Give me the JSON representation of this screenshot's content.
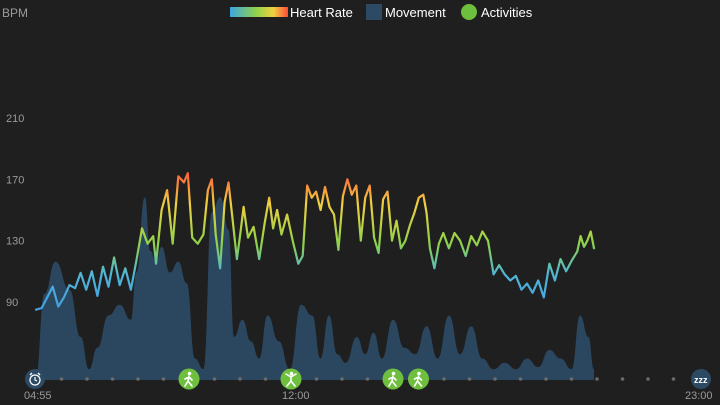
{
  "chart_data": {
    "type": "line",
    "y_axis": {
      "label": "BPM",
      "ticks": [
        90,
        130,
        170,
        210
      ],
      "range": [
        60,
        230
      ]
    },
    "x_axis": {
      "start_label": "04:55",
      "mid_label": "12:00",
      "end_label": "23:00"
    },
    "legend": {
      "position": "top-center",
      "items": [
        {
          "key": "heart_rate",
          "label": "Heart Rate"
        },
        {
          "key": "movement",
          "label": "Movement"
        },
        {
          "key": "activities",
          "label": "Activities"
        }
      ]
    },
    "colors": {
      "background": "#1f1f1f",
      "movement": "#2c4a63",
      "activity": "#6fbf3f",
      "axis_text": "#9a9a9a",
      "heart_rate_low": "#3d8fe0",
      "heart_rate_mid": "#8fd24a",
      "heart_rate_high": "#ff5a3a"
    },
    "heart_rate_series": [
      {
        "x": 0.0,
        "bpm": 85
      },
      {
        "x": 0.01,
        "bpm": 86
      },
      {
        "x": 0.02,
        "bpm": 93
      },
      {
        "x": 0.03,
        "bpm": 100
      },
      {
        "x": 0.04,
        "bpm": 87
      },
      {
        "x": 0.05,
        "bpm": 93
      },
      {
        "x": 0.06,
        "bpm": 101
      },
      {
        "x": 0.07,
        "bpm": 99
      },
      {
        "x": 0.08,
        "bpm": 109
      },
      {
        "x": 0.09,
        "bpm": 98
      },
      {
        "x": 0.1,
        "bpm": 110
      },
      {
        "x": 0.11,
        "bpm": 94
      },
      {
        "x": 0.12,
        "bpm": 113
      },
      {
        "x": 0.13,
        "bpm": 100
      },
      {
        "x": 0.14,
        "bpm": 119
      },
      {
        "x": 0.15,
        "bpm": 101
      },
      {
        "x": 0.16,
        "bpm": 112
      },
      {
        "x": 0.17,
        "bpm": 98
      },
      {
        "x": 0.18,
        "bpm": 117
      },
      {
        "x": 0.19,
        "bpm": 138
      },
      {
        "x": 0.2,
        "bpm": 128
      },
      {
        "x": 0.21,
        "bpm": 133
      },
      {
        "x": 0.215,
        "bpm": 115
      },
      {
        "x": 0.225,
        "bpm": 150
      },
      {
        "x": 0.235,
        "bpm": 163
      },
      {
        "x": 0.245,
        "bpm": 128
      },
      {
        "x": 0.255,
        "bpm": 172
      },
      {
        "x": 0.265,
        "bpm": 168
      },
      {
        "x": 0.272,
        "bpm": 174
      },
      {
        "x": 0.28,
        "bpm": 132
      },
      {
        "x": 0.29,
        "bpm": 128
      },
      {
        "x": 0.3,
        "bpm": 134
      },
      {
        "x": 0.308,
        "bpm": 163
      },
      {
        "x": 0.315,
        "bpm": 170
      },
      {
        "x": 0.322,
        "bpm": 134
      },
      {
        "x": 0.33,
        "bpm": 112
      },
      {
        "x": 0.338,
        "bpm": 155
      },
      {
        "x": 0.345,
        "bpm": 168
      },
      {
        "x": 0.352,
        "bpm": 145
      },
      {
        "x": 0.36,
        "bpm": 118
      },
      {
        "x": 0.366,
        "bpm": 134
      },
      {
        "x": 0.372,
        "bpm": 152
      },
      {
        "x": 0.38,
        "bpm": 132
      },
      {
        "x": 0.39,
        "bpm": 139
      },
      {
        "x": 0.4,
        "bpm": 118
      },
      {
        "x": 0.41,
        "bpm": 142
      },
      {
        "x": 0.418,
        "bpm": 158
      },
      {
        "x": 0.425,
        "bpm": 138
      },
      {
        "x": 0.432,
        "bpm": 150
      },
      {
        "x": 0.44,
        "bpm": 134
      },
      {
        "x": 0.45,
        "bpm": 147
      },
      {
        "x": 0.46,
        "bpm": 130
      },
      {
        "x": 0.47,
        "bpm": 115
      },
      {
        "x": 0.478,
        "bpm": 120
      },
      {
        "x": 0.486,
        "bpm": 166
      },
      {
        "x": 0.494,
        "bpm": 158
      },
      {
        "x": 0.502,
        "bpm": 162
      },
      {
        "x": 0.51,
        "bpm": 150
      },
      {
        "x": 0.518,
        "bpm": 165
      },
      {
        "x": 0.526,
        "bpm": 152
      },
      {
        "x": 0.534,
        "bpm": 147
      },
      {
        "x": 0.542,
        "bpm": 124
      },
      {
        "x": 0.55,
        "bpm": 159
      },
      {
        "x": 0.558,
        "bpm": 170
      },
      {
        "x": 0.566,
        "bpm": 160
      },
      {
        "x": 0.574,
        "bpm": 166
      },
      {
        "x": 0.582,
        "bpm": 130
      },
      {
        "x": 0.59,
        "bpm": 158
      },
      {
        "x": 0.598,
        "bpm": 166
      },
      {
        "x": 0.606,
        "bpm": 132
      },
      {
        "x": 0.614,
        "bpm": 122
      },
      {
        "x": 0.622,
        "bpm": 157
      },
      {
        "x": 0.63,
        "bpm": 162
      },
      {
        "x": 0.638,
        "bpm": 130
      },
      {
        "x": 0.646,
        "bpm": 143
      },
      {
        "x": 0.654,
        "bpm": 125
      },
      {
        "x": 0.662,
        "bpm": 130
      },
      {
        "x": 0.67,
        "bpm": 140
      },
      {
        "x": 0.678,
        "bpm": 148
      },
      {
        "x": 0.686,
        "bpm": 158
      },
      {
        "x": 0.694,
        "bpm": 160
      },
      {
        "x": 0.7,
        "bpm": 148
      },
      {
        "x": 0.706,
        "bpm": 125
      },
      {
        "x": 0.714,
        "bpm": 112
      },
      {
        "x": 0.722,
        "bpm": 128
      },
      {
        "x": 0.73,
        "bpm": 135
      },
      {
        "x": 0.74,
        "bpm": 125
      },
      {
        "x": 0.75,
        "bpm": 135
      },
      {
        "x": 0.76,
        "bpm": 130
      },
      {
        "x": 0.77,
        "bpm": 120
      },
      {
        "x": 0.78,
        "bpm": 133
      },
      {
        "x": 0.79,
        "bpm": 127
      },
      {
        "x": 0.8,
        "bpm": 136
      },
      {
        "x": 0.81,
        "bpm": 130
      },
      {
        "x": 0.82,
        "bpm": 108
      },
      {
        "x": 0.83,
        "bpm": 114
      },
      {
        "x": 0.84,
        "bpm": 108
      },
      {
        "x": 0.85,
        "bpm": 104
      },
      {
        "x": 0.86,
        "bpm": 107
      },
      {
        "x": 0.87,
        "bpm": 98
      },
      {
        "x": 0.88,
        "bpm": 102
      },
      {
        "x": 0.89,
        "bpm": 96
      },
      {
        "x": 0.9,
        "bpm": 104
      },
      {
        "x": 0.91,
        "bpm": 93
      },
      {
        "x": 0.92,
        "bpm": 115
      },
      {
        "x": 0.93,
        "bpm": 104
      },
      {
        "x": 0.94,
        "bpm": 118
      },
      {
        "x": 0.95,
        "bpm": 110
      },
      {
        "x": 0.96,
        "bpm": 117
      },
      {
        "x": 0.97,
        "bpm": 123
      },
      {
        "x": 0.976,
        "bpm": 133
      },
      {
        "x": 0.982,
        "bpm": 126
      },
      {
        "x": 0.988,
        "bpm": 130
      },
      {
        "x": 0.994,
        "bpm": 136
      },
      {
        "x": 1.0,
        "bpm": 125
      }
    ],
    "movement_series": [
      {
        "x": 0.0,
        "v": 0.02
      },
      {
        "x": 0.015,
        "v": 0.4
      },
      {
        "x": 0.035,
        "v": 0.55
      },
      {
        "x": 0.06,
        "v": 0.42
      },
      {
        "x": 0.08,
        "v": 0.2
      },
      {
        "x": 0.095,
        "v": 0.05
      },
      {
        "x": 0.11,
        "v": 0.15
      },
      {
        "x": 0.13,
        "v": 0.3
      },
      {
        "x": 0.15,
        "v": 0.35
      },
      {
        "x": 0.17,
        "v": 0.28
      },
      {
        "x": 0.18,
        "v": 0.5
      },
      {
        "x": 0.195,
        "v": 0.85
      },
      {
        "x": 0.205,
        "v": 0.6
      },
      {
        "x": 0.215,
        "v": 0.55
      },
      {
        "x": 0.225,
        "v": 0.62
      },
      {
        "x": 0.24,
        "v": 0.5
      },
      {
        "x": 0.255,
        "v": 0.55
      },
      {
        "x": 0.27,
        "v": 0.45
      },
      {
        "x": 0.285,
        "v": 0.1
      },
      {
        "x": 0.3,
        "v": 0.05
      },
      {
        "x": 0.315,
        "v": 0.78
      },
      {
        "x": 0.33,
        "v": 0.85
      },
      {
        "x": 0.345,
        "v": 0.7
      },
      {
        "x": 0.355,
        "v": 0.2
      },
      {
        "x": 0.37,
        "v": 0.28
      },
      {
        "x": 0.385,
        "v": 0.18
      },
      {
        "x": 0.4,
        "v": 0.1
      },
      {
        "x": 0.415,
        "v": 0.3
      },
      {
        "x": 0.435,
        "v": 0.18
      },
      {
        "x": 0.455,
        "v": 0.05
      },
      {
        "x": 0.475,
        "v": 0.35
      },
      {
        "x": 0.495,
        "v": 0.3
      },
      {
        "x": 0.51,
        "v": 0.1
      },
      {
        "x": 0.525,
        "v": 0.3
      },
      {
        "x": 0.54,
        "v": 0.12
      },
      {
        "x": 0.555,
        "v": 0.08
      },
      {
        "x": 0.575,
        "v": 0.2
      },
      {
        "x": 0.59,
        "v": 0.12
      },
      {
        "x": 0.605,
        "v": 0.22
      },
      {
        "x": 0.62,
        "v": 0.1
      },
      {
        "x": 0.64,
        "v": 0.28
      },
      {
        "x": 0.66,
        "v": 0.15
      },
      {
        "x": 0.68,
        "v": 0.12
      },
      {
        "x": 0.7,
        "v": 0.25
      },
      {
        "x": 0.72,
        "v": 0.1
      },
      {
        "x": 0.74,
        "v": 0.3
      },
      {
        "x": 0.76,
        "v": 0.12
      },
      {
        "x": 0.78,
        "v": 0.25
      },
      {
        "x": 0.8,
        "v": 0.1
      },
      {
        "x": 0.82,
        "v": 0.05
      },
      {
        "x": 0.84,
        "v": 0.08
      },
      {
        "x": 0.86,
        "v": 0.05
      },
      {
        "x": 0.88,
        "v": 0.1
      },
      {
        "x": 0.9,
        "v": 0.06
      },
      {
        "x": 0.92,
        "v": 0.14
      },
      {
        "x": 0.94,
        "v": 0.1
      },
      {
        "x": 0.96,
        "v": 0.05
      },
      {
        "x": 0.975,
        "v": 0.3
      },
      {
        "x": 0.99,
        "v": 0.2
      },
      {
        "x": 1.0,
        "v": 0.05
      }
    ],
    "timeline": {
      "dots": 26,
      "start_icon": "alarm-clock-icon",
      "end_icon": "sleep-zzz-icon",
      "activities": [
        {
          "slot": 6,
          "icon": "walking-icon"
        },
        {
          "slot": 10,
          "icon": "exercise-icon"
        },
        {
          "slot": 14,
          "icon": "walking-icon"
        },
        {
          "slot": 15,
          "icon": "walking-icon"
        }
      ]
    }
  }
}
